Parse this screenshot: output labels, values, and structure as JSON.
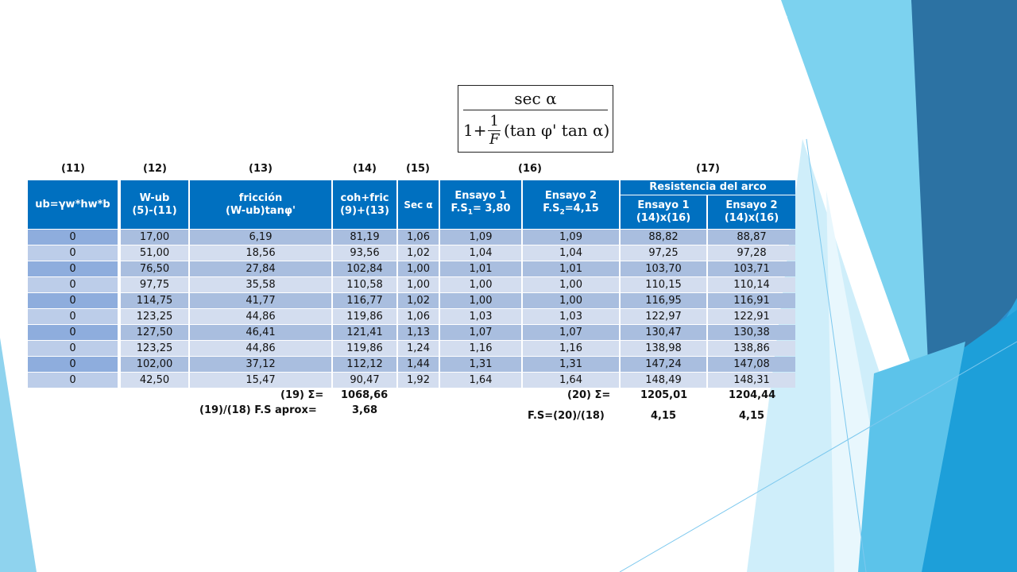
{
  "formula": {
    "numerator": "sec α",
    "denominator_lead": "1+",
    "frac_num": "1",
    "frac_den": "F",
    "denominator_tail": "(tan φ' tan α)"
  },
  "column_numbers": [
    "(11)",
    "(12)",
    "(13)",
    "(14)",
    "(15)",
    "(16)",
    "(17)"
  ],
  "headers": {
    "c11": "ub=γw*hw*b",
    "c12a": "W-ub",
    "c12b": "(5)-(11)",
    "c13a": "fricción",
    "c13b": "(W-ub)tanφ'",
    "c14a": "coh+fric",
    "c14b": "(9)+(13)",
    "c15": "Sec α",
    "c16a_1": "Ensayo 1",
    "c16a_2": "F.S",
    "c16a_sub": "1",
    "c16a_3": "= 3,80",
    "c16b_1": "Ensayo 2",
    "c16b_2": "F.S",
    "c16b_sub": "2",
    "c16b_3": "=4,15",
    "arc": "Resistencia del arco",
    "c17a_1": "Ensayo 1",
    "c17a_2": "(14)x(16)",
    "c17b_1": "Ensayo 2",
    "c17b_2": "(14)x(16)"
  },
  "rows": [
    [
      "0",
      "17,00",
      "6,19",
      "81,19",
      "1,06",
      "1,09",
      "1,09",
      "88,82",
      "88,87"
    ],
    [
      "0",
      "51,00",
      "18,56",
      "93,56",
      "1,02",
      "1,04",
      "1,04",
      "97,25",
      "97,28"
    ],
    [
      "0",
      "76,50",
      "27,84",
      "102,84",
      "1,00",
      "1,01",
      "1,01",
      "103,70",
      "103,71"
    ],
    [
      "0",
      "97,75",
      "35,58",
      "110,58",
      "1,00",
      "1,00",
      "1,00",
      "110,15",
      "110,14"
    ],
    [
      "0",
      "114,75",
      "41,77",
      "116,77",
      "1,02",
      "1,00",
      "1,00",
      "116,95",
      "116,91"
    ],
    [
      "0",
      "123,25",
      "44,86",
      "119,86",
      "1,06",
      "1,03",
      "1,03",
      "122,97",
      "122,91"
    ],
    [
      "0",
      "127,50",
      "46,41",
      "121,41",
      "1,13",
      "1,07",
      "1,07",
      "130,47",
      "130,38"
    ],
    [
      "0",
      "123,25",
      "44,86",
      "119,86",
      "1,24",
      "1,16",
      "1,16",
      "138,98",
      "138,86"
    ],
    [
      "0",
      "102,00",
      "37,12",
      "112,12",
      "1,44",
      "1,31",
      "1,31",
      "147,24",
      "147,08"
    ],
    [
      "0",
      "42,50",
      "15,47",
      "90,47",
      "1,92",
      "1,64",
      "1,64",
      "148,49",
      "148,31"
    ]
  ],
  "summary": {
    "sum19_label": "(19) Σ=",
    "sum19_value": "1068,66",
    "fs_aprox_label": "(19)/(18) F.S aprox=",
    "fs_aprox_value": "3,68",
    "sum20_label": "(20) Σ=",
    "sum20_v1": "1205,01",
    "sum20_v2": "1204,44",
    "fs_label": "F.S=(20)/(18)",
    "fs_v1": "4,15",
    "fs_v2": "4,15"
  },
  "colors": {
    "header_blue": "#0070c0",
    "row_dark": "#a9bedf",
    "row_light": "#d3ddef",
    "col0_dark": "#8eaddd",
    "col0_light": "#bccde9"
  }
}
